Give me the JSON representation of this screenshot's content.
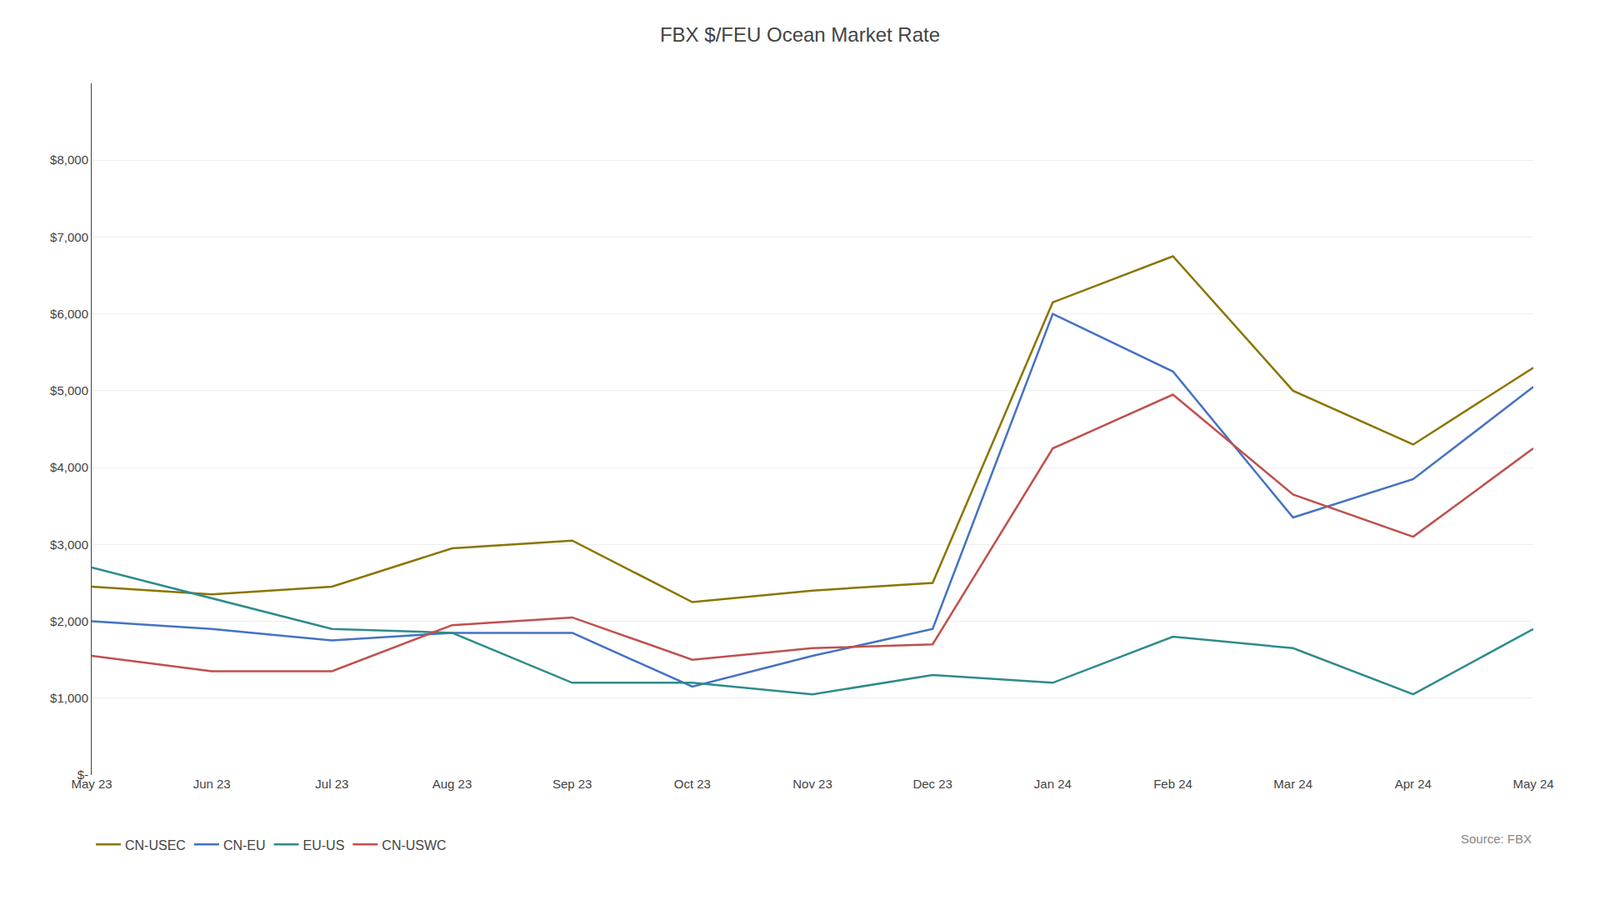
{
  "chart_data": {
    "type": "line",
    "title": "FBX $/FEU Ocean Market Rate",
    "categories": [
      "May 23",
      "Jun 23",
      "Jul 23",
      "Aug 23",
      "Sep 23",
      "Oct 23",
      "Nov 23",
      "Dec 23",
      "Jan 24",
      "Feb 24",
      "Mar 24",
      "Apr 24",
      "May 24"
    ],
    "series": [
      {
        "name": "CN-USEC",
        "color": "#8B7500",
        "values": [
          2450,
          2350,
          2450,
          2950,
          3050,
          2250,
          2400,
          2500,
          6150,
          6750,
          5000,
          4300,
          5300
        ]
      },
      {
        "name": "CN-EU",
        "color": "#4472C4",
        "values": [
          2000,
          1900,
          1750,
          1850,
          1850,
          1150,
          1550,
          1900,
          6000,
          5250,
          3350,
          3850,
          5050
        ]
      },
      {
        "name": "EU-US",
        "color": "#2E8B8B",
        "values": [
          2700,
          2300,
          1900,
          1850,
          1200,
          1200,
          1050,
          1300,
          1200,
          1800,
          1650,
          1050,
          1900
        ]
      },
      {
        "name": "CN-USWC",
        "color": "#C0504D",
        "values": [
          1550,
          1350,
          1350,
          1950,
          2050,
          1500,
          1650,
          1700,
          4250,
          4950,
          3650,
          3100,
          4250
        ]
      }
    ],
    "ylim": [
      0,
      9000
    ],
    "yticks": [
      {
        "value": 0,
        "label": "$-"
      },
      {
        "value": 1000,
        "label": "$1,000"
      },
      {
        "value": 2000,
        "label": "$2,000"
      },
      {
        "value": 3000,
        "label": "$3,000"
      },
      {
        "value": 4000,
        "label": "$4,000"
      },
      {
        "value": 5000,
        "label": "$5,000"
      },
      {
        "value": 6000,
        "label": "$6,000"
      },
      {
        "value": 7000,
        "label": "$7,000"
      },
      {
        "value": 8000,
        "label": "$8,000"
      }
    ],
    "grid": true,
    "legend": "lower left",
    "annotations": [
      "Source: FBX"
    ]
  }
}
